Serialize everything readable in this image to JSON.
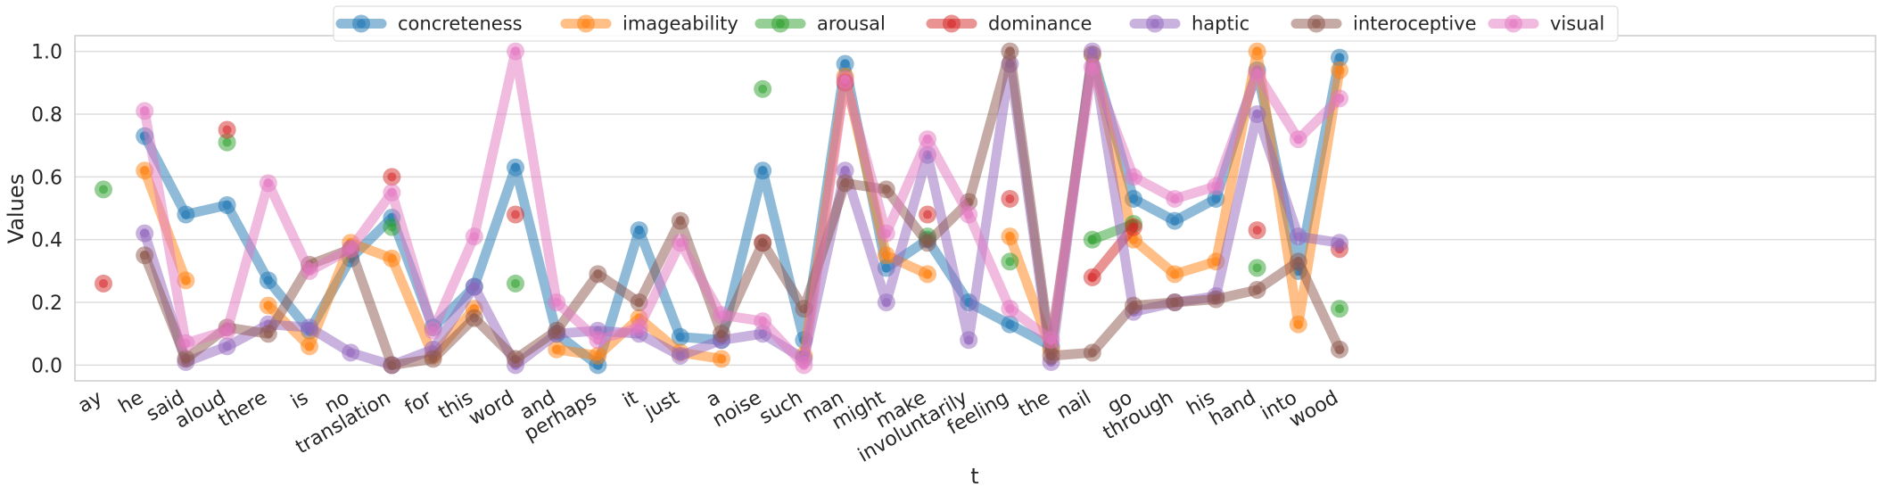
{
  "chart_data": {
    "type": "line",
    "xlabel": "t",
    "ylabel": "Values",
    "ylim": [
      -0.05,
      1.05
    ],
    "yticks": [
      "0.0",
      "0.2",
      "0.4",
      "0.6",
      "0.8",
      "1.0"
    ],
    "grid": true,
    "legend_position": "top-center",
    "categories": [
      "ay",
      "he",
      "said",
      "aloud",
      "there",
      "is",
      "no",
      "translation",
      "for",
      "this",
      "word",
      "and",
      "perhaps",
      "it",
      "just",
      "a",
      "noise",
      "such",
      "man",
      "might",
      "make",
      "involuntarily",
      "feeling",
      "the",
      "nail",
      "go",
      "through",
      "his",
      "hand",
      "into",
      "wood"
    ],
    "series": [
      {
        "name": "concreteness",
        "color": "#1f77b4",
        "values": [
          null,
          0.73,
          0.48,
          0.51,
          0.27,
          0.11,
          0.34,
          0.47,
          0.12,
          0.25,
          0.63,
          0.1,
          0.0,
          0.43,
          0.09,
          0.08,
          0.62,
          0.08,
          0.96,
          0.31,
          0.4,
          0.2,
          0.13,
          0.06,
          0.99,
          0.53,
          0.46,
          0.53,
          0.94,
          0.3,
          0.98
        ]
      },
      {
        "name": "imageability",
        "color": "#ff7f0e",
        "values": [
          null,
          0.62,
          0.27,
          null,
          0.19,
          0.06,
          0.39,
          0.34,
          0.03,
          0.18,
          null,
          0.05,
          0.03,
          0.15,
          0.04,
          0.02,
          null,
          0.03,
          0.92,
          0.35,
          0.29,
          null,
          0.41,
          0.05,
          0.99,
          0.4,
          0.29,
          0.33,
          1.0,
          0.13,
          0.94
        ]
      },
      {
        "name": "arousal",
        "color": "#2ca02c",
        "values": [
          0.56,
          null,
          null,
          0.71,
          null,
          null,
          null,
          0.44,
          null,
          null,
          0.26,
          null,
          null,
          null,
          null,
          null,
          0.88,
          null,
          null,
          null,
          0.41,
          null,
          0.33,
          null,
          0.4,
          0.45,
          null,
          null,
          0.31,
          null,
          0.18
        ]
      },
      {
        "name": "dominance",
        "color": "#d62728",
        "values": [
          0.26,
          null,
          null,
          0.75,
          null,
          null,
          null,
          0.6,
          null,
          null,
          0.48,
          null,
          null,
          null,
          null,
          null,
          0.39,
          null,
          0.9,
          null,
          0.48,
          null,
          0.53,
          null,
          0.28,
          0.44,
          null,
          null,
          0.43,
          null,
          0.37
        ]
      },
      {
        "name": "haptic",
        "color": "#9467bd",
        "values": [
          null,
          0.42,
          0.01,
          0.06,
          0.13,
          0.12,
          0.04,
          0.0,
          0.05,
          0.25,
          0.0,
          0.1,
          0.11,
          0.1,
          0.03,
          0.08,
          0.1,
          0.02,
          0.62,
          0.2,
          0.67,
          0.08,
          0.96,
          0.01,
          1.0,
          0.17,
          0.2,
          0.22,
          0.8,
          0.41,
          0.39
        ]
      },
      {
        "name": "interoceptive",
        "color": "#8c564b",
        "values": [
          null,
          0.35,
          0.02,
          0.12,
          0.1,
          0.32,
          0.37,
          0.0,
          0.02,
          0.15,
          0.02,
          0.11,
          0.29,
          0.2,
          0.46,
          0.1,
          0.39,
          0.18,
          0.58,
          0.56,
          0.39,
          0.52,
          1.0,
          0.03,
          0.04,
          0.19,
          0.2,
          0.21,
          0.24,
          0.33,
          0.05
        ]
      },
      {
        "name": "visual",
        "color": "#e377c2",
        "values": [
          null,
          0.81,
          0.07,
          0.11,
          0.58,
          0.3,
          0.37,
          0.55,
          0.11,
          0.41,
          1.0,
          0.2,
          0.08,
          0.12,
          0.39,
          0.16,
          0.14,
          0.0,
          0.91,
          0.42,
          0.72,
          0.48,
          0.18,
          0.08,
          0.95,
          0.6,
          0.53,
          0.57,
          0.93,
          0.72,
          0.85
        ]
      }
    ]
  }
}
